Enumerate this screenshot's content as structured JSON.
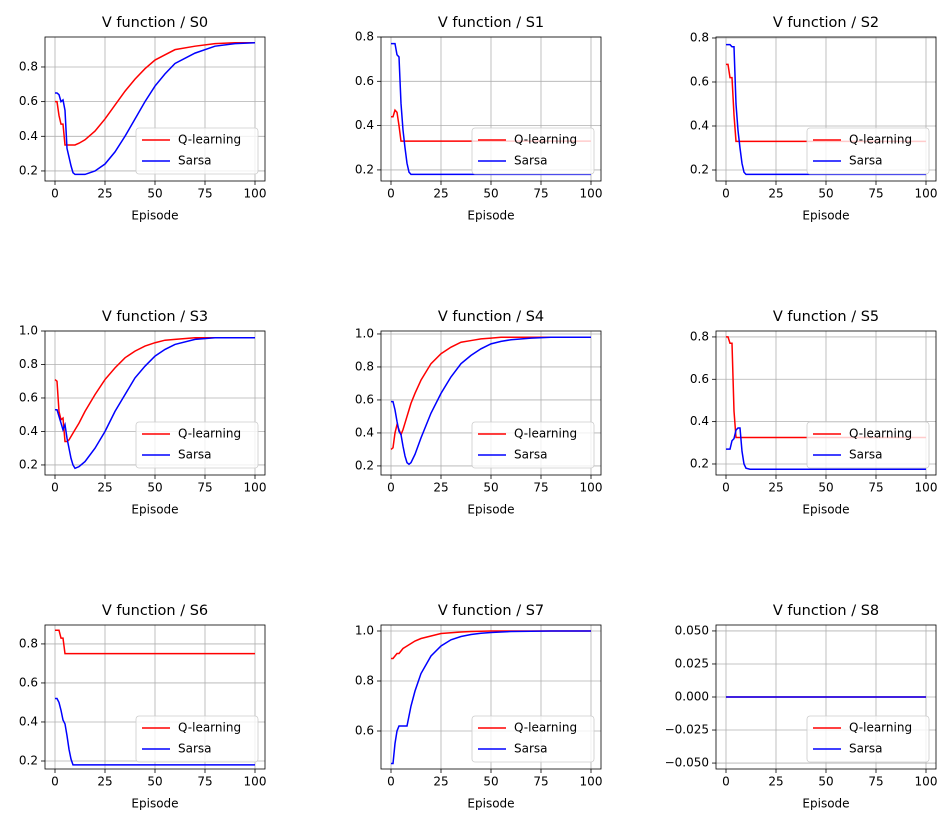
{
  "chart_data": [
    {
      "type": "line",
      "title": "V function / S0",
      "xlabel": "Episode",
      "grid": true,
      "legend": "lower right",
      "xlim": [
        -5,
        105
      ],
      "xticks": [
        0,
        25,
        50,
        75,
        100
      ],
      "ylim": [
        0.142,
        0.973
      ],
      "yticks": [
        0.2,
        0.4,
        0.6,
        0.8
      ],
      "x": [
        0,
        1,
        2,
        3,
        4,
        5,
        6,
        7,
        8,
        9,
        10,
        12,
        15,
        20,
        25,
        30,
        35,
        40,
        45,
        50,
        55,
        60,
        70,
        80,
        90,
        100
      ],
      "series": [
        {
          "name": "Q-learning",
          "color": "#ff0000",
          "values": [
            0.6,
            0.6,
            0.52,
            0.47,
            0.47,
            0.35,
            0.35,
            0.35,
            0.35,
            0.35,
            0.35,
            0.36,
            0.38,
            0.43,
            0.5,
            0.58,
            0.66,
            0.73,
            0.79,
            0.84,
            0.87,
            0.9,
            0.92,
            0.935,
            0.94,
            0.94
          ]
        },
        {
          "name": "Sarsa",
          "color": "#0000ff",
          "values": [
            0.65,
            0.65,
            0.64,
            0.6,
            0.61,
            0.55,
            0.33,
            0.28,
            0.23,
            0.19,
            0.18,
            0.18,
            0.18,
            0.2,
            0.24,
            0.31,
            0.4,
            0.5,
            0.6,
            0.69,
            0.76,
            0.82,
            0.88,
            0.92,
            0.935,
            0.94
          ]
        }
      ]
    },
    {
      "type": "line",
      "title": "V function / S1",
      "xlabel": "Episode",
      "grid": true,
      "legend": "lower right",
      "xlim": [
        -5,
        105
      ],
      "xticks": [
        0,
        25,
        50,
        75,
        100
      ],
      "ylim": [
        0.15,
        0.8
      ],
      "yticks": [
        0.2,
        0.4,
        0.6,
        0.8
      ],
      "x": [
        0,
        1,
        2,
        3,
        4,
        5,
        6,
        7,
        8,
        9,
        10,
        12,
        15,
        20,
        25,
        30,
        35,
        40,
        45,
        50,
        55,
        60,
        70,
        80,
        90,
        100
      ],
      "series": [
        {
          "name": "Q-learning",
          "color": "#ff0000",
          "values": [
            0.44,
            0.44,
            0.47,
            0.46,
            0.4,
            0.33,
            0.33,
            0.33,
            0.33,
            0.33,
            0.33,
            0.33,
            0.33,
            0.33,
            0.33,
            0.33,
            0.33,
            0.33,
            0.33,
            0.33,
            0.33,
            0.33,
            0.33,
            0.33,
            0.33,
            0.33
          ]
        },
        {
          "name": "Sarsa",
          "color": "#0000ff",
          "values": [
            0.77,
            0.77,
            0.77,
            0.72,
            0.71,
            0.5,
            0.38,
            0.3,
            0.23,
            0.19,
            0.18,
            0.18,
            0.18,
            0.18,
            0.18,
            0.18,
            0.18,
            0.18,
            0.18,
            0.18,
            0.18,
            0.18,
            0.18,
            0.18,
            0.18,
            0.18
          ]
        }
      ]
    },
    {
      "type": "line",
      "title": "V function / S2",
      "xlabel": "Episode",
      "grid": true,
      "legend": "lower right",
      "xlim": [
        -5,
        105
      ],
      "xticks": [
        0,
        25,
        50,
        75,
        100
      ],
      "ylim": [
        0.15,
        0.8045
      ],
      "yticks": [
        0.2,
        0.4,
        0.6,
        0.8
      ],
      "x": [
        0,
        1,
        2,
        3,
        4,
        5,
        6,
        7,
        8,
        9,
        10,
        12,
        15,
        20,
        25,
        30,
        35,
        40,
        45,
        50,
        55,
        60,
        70,
        80,
        90,
        100
      ],
      "series": [
        {
          "name": "Q-learning",
          "color": "#ff0000",
          "values": [
            0.68,
            0.68,
            0.62,
            0.62,
            0.45,
            0.33,
            0.33,
            0.33,
            0.33,
            0.33,
            0.33,
            0.33,
            0.33,
            0.33,
            0.33,
            0.33,
            0.33,
            0.33,
            0.33,
            0.33,
            0.33,
            0.33,
            0.33,
            0.33,
            0.33,
            0.33
          ]
        },
        {
          "name": "Sarsa",
          "color": "#0000ff",
          "values": [
            0.77,
            0.77,
            0.77,
            0.76,
            0.76,
            0.5,
            0.38,
            0.3,
            0.23,
            0.19,
            0.18,
            0.18,
            0.18,
            0.18,
            0.18,
            0.18,
            0.18,
            0.18,
            0.18,
            0.18,
            0.18,
            0.18,
            0.18,
            0.18,
            0.18,
            0.18
          ]
        }
      ]
    },
    {
      "type": "line",
      "title": "V function / S3",
      "xlabel": "Episode",
      "grid": true,
      "legend": "lower right",
      "xlim": [
        -5,
        105
      ],
      "xticks": [
        0,
        25,
        50,
        75,
        100
      ],
      "ylim": [
        0.14,
        1.0
      ],
      "yticks": [
        0.2,
        0.4,
        0.6,
        0.8,
        {
          "value": 1,
          "label": "1.0"
        }
      ],
      "x": [
        0,
        1,
        2,
        3,
        4,
        5,
        6,
        7,
        8,
        9,
        10,
        12,
        15,
        20,
        25,
        30,
        35,
        40,
        45,
        50,
        55,
        60,
        70,
        80,
        90,
        100
      ],
      "series": [
        {
          "name": "Q-learning",
          "color": "#ff0000",
          "values": [
            0.71,
            0.7,
            0.52,
            0.47,
            0.48,
            0.34,
            0.34,
            0.35,
            0.37,
            0.39,
            0.41,
            0.45,
            0.52,
            0.62,
            0.71,
            0.78,
            0.84,
            0.88,
            0.91,
            0.93,
            0.945,
            0.95,
            0.96,
            0.96,
            0.96,
            0.96
          ]
        },
        {
          "name": "Sarsa",
          "color": "#0000ff",
          "values": [
            0.53,
            0.53,
            0.49,
            0.45,
            0.41,
            0.44,
            0.36,
            0.3,
            0.24,
            0.2,
            0.18,
            0.19,
            0.22,
            0.3,
            0.4,
            0.52,
            0.62,
            0.72,
            0.79,
            0.85,
            0.89,
            0.92,
            0.95,
            0.96,
            0.96,
            0.96
          ]
        }
      ]
    },
    {
      "type": "line",
      "title": "V function / S4",
      "xlabel": "Episode",
      "grid": true,
      "legend": "lower right",
      "xlim": [
        -5,
        105
      ],
      "xticks": [
        0,
        25,
        50,
        75,
        100
      ],
      "ylim": [
        0.145,
        1.018
      ],
      "yticks": [
        0.2,
        0.4,
        0.6,
        0.8,
        {
          "value": 1,
          "label": "1.0"
        }
      ],
      "x": [
        0,
        1,
        2,
        3,
        4,
        5,
        6,
        7,
        8,
        9,
        10,
        12,
        15,
        20,
        25,
        30,
        35,
        40,
        45,
        50,
        55,
        60,
        70,
        80,
        90,
        100
      ],
      "series": [
        {
          "name": "Q-learning",
          "color": "#ff0000",
          "values": [
            0.3,
            0.31,
            0.4,
            0.45,
            0.42,
            0.39,
            0.42,
            0.46,
            0.5,
            0.54,
            0.58,
            0.64,
            0.72,
            0.82,
            0.88,
            0.92,
            0.95,
            0.96,
            0.97,
            0.975,
            0.98,
            0.98,
            0.98,
            0.98,
            0.98,
            0.98
          ]
        },
        {
          "name": "Sarsa",
          "color": "#0000ff",
          "values": [
            0.59,
            0.59,
            0.54,
            0.47,
            0.41,
            0.39,
            0.32,
            0.26,
            0.22,
            0.21,
            0.22,
            0.27,
            0.37,
            0.52,
            0.64,
            0.74,
            0.82,
            0.87,
            0.91,
            0.94,
            0.955,
            0.965,
            0.975,
            0.98,
            0.98,
            0.98
          ]
        }
      ]
    },
    {
      "type": "line",
      "title": "V function / S5",
      "xlabel": "Episode",
      "grid": true,
      "legend": "lower right",
      "xlim": [
        -5,
        105
      ],
      "xticks": [
        0,
        25,
        50,
        75,
        100
      ],
      "ylim": [
        0.148,
        0.828
      ],
      "yticks": [
        0.2,
        0.4,
        0.6,
        0.8
      ],
      "x": [
        0,
        1,
        2,
        3,
        4,
        5,
        6,
        7,
        8,
        9,
        10,
        12,
        15,
        20,
        25,
        30,
        35,
        40,
        45,
        50,
        55,
        60,
        70,
        80,
        90,
        100
      ],
      "series": [
        {
          "name": "Q-learning",
          "color": "#ff0000",
          "values": [
            0.8,
            0.8,
            0.77,
            0.77,
            0.45,
            0.325,
            0.325,
            0.325,
            0.325,
            0.325,
            0.325,
            0.325,
            0.325,
            0.325,
            0.325,
            0.325,
            0.325,
            0.325,
            0.325,
            0.325,
            0.325,
            0.325,
            0.325,
            0.325,
            0.325,
            0.325
          ]
        },
        {
          "name": "Sarsa",
          "color": "#0000ff",
          "values": [
            0.27,
            0.27,
            0.27,
            0.31,
            0.32,
            0.36,
            0.37,
            0.37,
            0.26,
            0.2,
            0.18,
            0.175,
            0.175,
            0.175,
            0.175,
            0.175,
            0.175,
            0.175,
            0.175,
            0.175,
            0.175,
            0.175,
            0.175,
            0.175,
            0.175,
            0.175
          ]
        }
      ]
    },
    {
      "type": "line",
      "title": "V function / S6",
      "xlabel": "Episode",
      "grid": true,
      "legend": "lower right",
      "xlim": [
        -5,
        105
      ],
      "xticks": [
        0,
        25,
        50,
        75,
        100
      ],
      "ylim": [
        0.159,
        0.897
      ],
      "yticks": [
        0.2,
        0.4,
        0.6,
        0.8
      ],
      "x": [
        0,
        1,
        2,
        3,
        4,
        5,
        6,
        7,
        8,
        9,
        10,
        12,
        15,
        20,
        25,
        30,
        35,
        40,
        45,
        50,
        55,
        60,
        70,
        80,
        90,
        100
      ],
      "series": [
        {
          "name": "Q-learning",
          "color": "#ff0000",
          "values": [
            0.87,
            0.87,
            0.87,
            0.83,
            0.83,
            0.75,
            0.75,
            0.75,
            0.75,
            0.75,
            0.75,
            0.75,
            0.75,
            0.75,
            0.75,
            0.75,
            0.75,
            0.75,
            0.75,
            0.75,
            0.75,
            0.75,
            0.75,
            0.75,
            0.75,
            0.75
          ]
        },
        {
          "name": "Sarsa",
          "color": "#0000ff",
          "values": [
            0.52,
            0.52,
            0.5,
            0.46,
            0.41,
            0.39,
            0.33,
            0.26,
            0.21,
            0.18,
            0.18,
            0.18,
            0.18,
            0.18,
            0.18,
            0.18,
            0.18,
            0.18,
            0.18,
            0.18,
            0.18,
            0.18,
            0.18,
            0.18,
            0.18,
            0.18
          ]
        }
      ]
    },
    {
      "type": "line",
      "title": "V function / S7",
      "xlabel": "Episode",
      "grid": true,
      "legend": "lower right",
      "xlim": [
        -5,
        105
      ],
      "xticks": [
        0,
        25,
        50,
        75,
        100
      ],
      "ylim": [
        0.448,
        1.024
      ],
      "yticks": [
        0.6,
        0.8,
        {
          "value": 1,
          "label": "1.0"
        }
      ],
      "x": [
        0,
        1,
        2,
        3,
        4,
        5,
        6,
        7,
        8,
        9,
        10,
        12,
        15,
        20,
        25,
        30,
        35,
        40,
        45,
        50,
        55,
        60,
        70,
        80,
        90,
        100
      ],
      "series": [
        {
          "name": "Q-learning",
          "color": "#ff0000",
          "values": [
            0.89,
            0.89,
            0.9,
            0.91,
            0.91,
            0.92,
            0.93,
            0.935,
            0.94,
            0.945,
            0.95,
            0.96,
            0.97,
            0.98,
            0.99,
            0.993,
            0.996,
            0.998,
            0.999,
            1,
            1,
            1,
            1,
            1,
            1,
            1
          ]
        },
        {
          "name": "Sarsa",
          "color": "#0000ff",
          "values": [
            0.47,
            0.47,
            0.55,
            0.6,
            0.62,
            0.62,
            0.62,
            0.62,
            0.62,
            0.66,
            0.7,
            0.76,
            0.83,
            0.9,
            0.94,
            0.965,
            0.978,
            0.986,
            0.991,
            0.994,
            0.996,
            0.998,
            0.999,
            1,
            1,
            1
          ]
        }
      ]
    },
    {
      "type": "line",
      "title": "V function / S8",
      "xlabel": "Episode",
      "grid": true,
      "legend": "lower right",
      "xlim": [
        -5,
        105
      ],
      "xticks": [
        0,
        25,
        50,
        75,
        100
      ],
      "ylim": [
        -0.0545,
        0.0545
      ],
      "yticks": [
        {
          "value": -0.05,
          "label": "−0.050"
        },
        {
          "value": -0.025,
          "label": "−0.025"
        },
        {
          "value": 0,
          "label": "0.000"
        },
        {
          "value": 0.025,
          "label": "0.025"
        },
        {
          "value": 0.05,
          "label": "0.050"
        }
      ],
      "x": [
        0,
        1,
        2,
        3,
        4,
        5,
        6,
        7,
        8,
        9,
        10,
        12,
        15,
        20,
        25,
        30,
        35,
        40,
        45,
        50,
        55,
        60,
        70,
        80,
        90,
        100
      ],
      "series": [
        {
          "name": "Q-learning",
          "color": "#ff0000",
          "values": [
            0,
            0,
            0,
            0,
            0,
            0,
            0,
            0,
            0,
            0,
            0,
            0,
            0,
            0,
            0,
            0,
            0,
            0,
            0,
            0,
            0,
            0,
            0,
            0,
            0,
            0
          ]
        },
        {
          "name": "Sarsa",
          "color": "#0000ff",
          "values": [
            0,
            0,
            0,
            0,
            0,
            0,
            0,
            0,
            0,
            0,
            0,
            0,
            0,
            0,
            0,
            0,
            0,
            0,
            0,
            0,
            0,
            0,
            0,
            0,
            0,
            0
          ]
        }
      ]
    }
  ]
}
